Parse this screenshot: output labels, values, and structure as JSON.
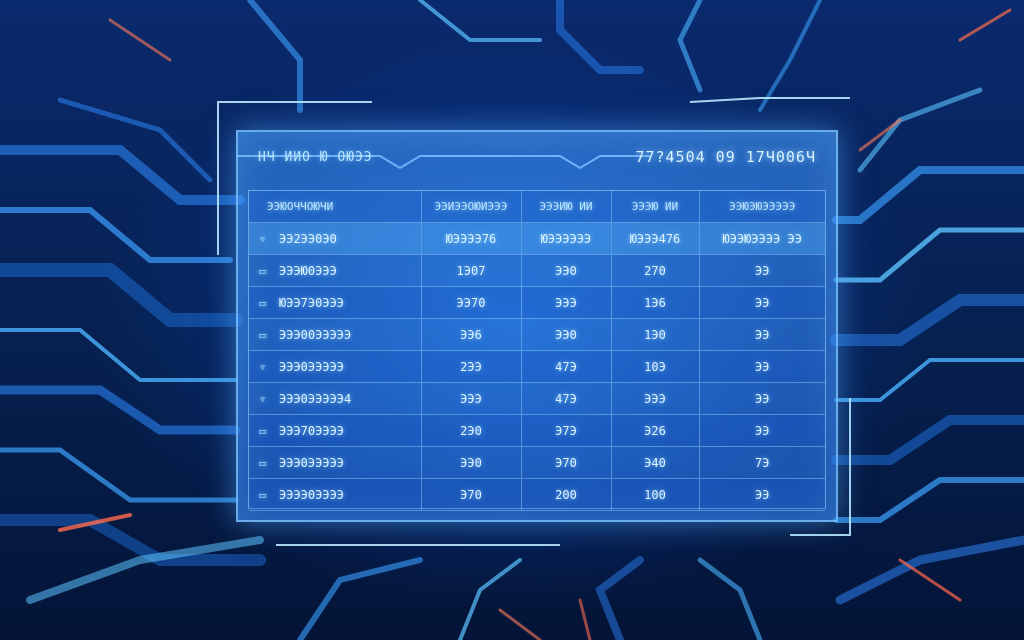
{
  "header": {
    "left_text": "HЧ ИИО Ю ОЮЭЭ",
    "right_text": "77?4504 09 17Ч006Ч"
  },
  "table": {
    "columns": [
      "ЭЭЮОЧЧОЮЧИ",
      "ЭЭИЭЭОЮИЭЭЭ",
      "ЭЭЭИЮ ИИ",
      "ЭЭЭЮ ИИ",
      "ЭЭЮЭЮЭЭЭЭЭ"
    ],
    "rows": [
      {
        "bullet": "▿",
        "name": "ЭЭ2ЭЭ0Э0",
        "v1": "ЮЭЭЭЭ76",
        "v2": "ЮЭЭЭЭЭЭ",
        "v3": "ЮЭЭЭ476",
        "v4": "ЮЭЭЮЭЭЭЭ ЭЭ"
      },
      {
        "bullet": "▭",
        "name": "ЭЭЭЮ0ЭЭЭ",
        "v1": "1Э07",
        "v2": "ЭЭ0",
        "v3": "270",
        "v4": "ЭЭ"
      },
      {
        "bullet": "▭",
        "name": "ЮЭЭ7Э0ЭЭЭ",
        "v1": "ЭЭ70",
        "v2": "ЭЭЭ",
        "v3": "1Э6",
        "v4": "ЭЭ"
      },
      {
        "bullet": "▭",
        "name": "ЭЭЭ00ЭЭЭЭЭ",
        "v1": "ЭЭ6",
        "v2": "ЭЭ0",
        "v3": "1Э0",
        "v4": "ЭЭ"
      },
      {
        "bullet": "▿",
        "name": "ЭЭЭ0ЭЭЭЭЭ",
        "v1": "2ЭЭ",
        "v2": "47Э",
        "v3": "10Э",
        "v4": "ЭЭ"
      },
      {
        "bullet": "▿",
        "name": "ЭЭЭ0ЭЭЭЭЭ4",
        "v1": "ЭЭЭ",
        "v2": "47Э",
        "v3": "ЭЭЭ",
        "v4": "ЭЭ"
      },
      {
        "bullet": "▭",
        "name": "ЭЭЭ70ЭЭЭЭ",
        "v1": "2Э0",
        "v2": "Э7Э",
        "v3": "Э26",
        "v4": "ЭЭ"
      },
      {
        "bullet": "▭",
        "name": "ЭЭЭ0ЭЭЭЭЭ",
        "v1": "ЭЭ0",
        "v2": "Э70",
        "v3": "Э40",
        "v4": "7Э"
      },
      {
        "bullet": "▭",
        "name": "ЭЭЭЭ0ЭЭЭЭ",
        "v1": "Э70",
        "v2": "200",
        "v3": "100",
        "v4": "ЭЭ"
      }
    ]
  },
  "colors": {
    "background": "#06183f",
    "accent": "#4db3ff",
    "glow": "#bfe7ff",
    "highlight": "#ff6a4d"
  }
}
